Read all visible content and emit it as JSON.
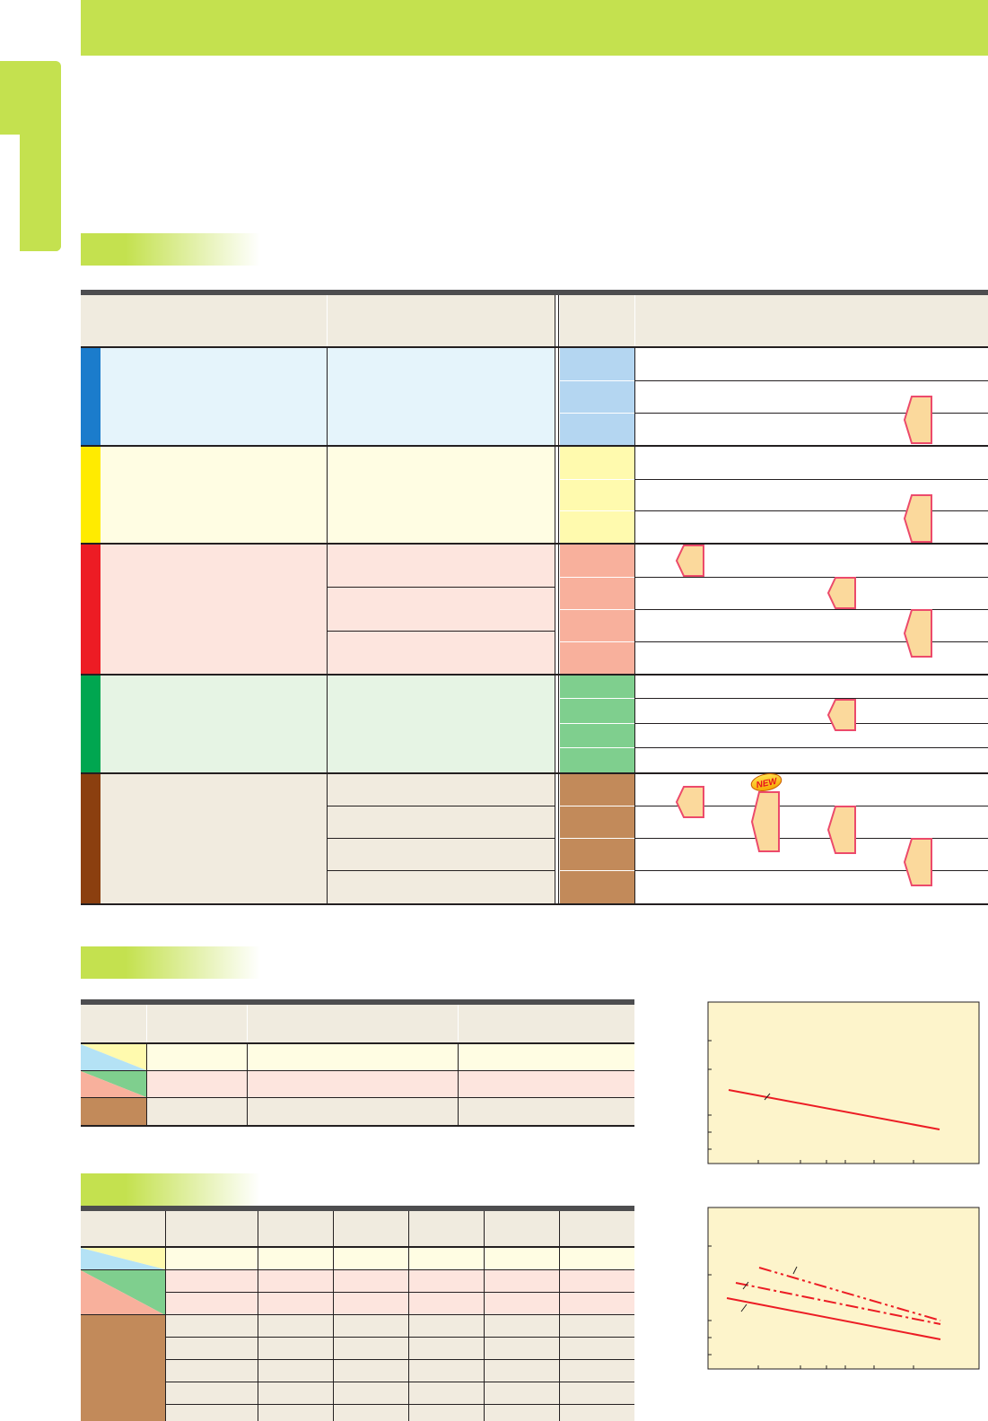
{
  "colors": {
    "accent_green": "#c4e14f",
    "blue": "#1b7ccc",
    "blue_light": "#e5f4fb",
    "blue_mid": "#b4d6f1",
    "yellow": "#ffeb00",
    "yellow_light": "#fffde3",
    "yellow_mid": "#fffaae",
    "red": "#ed1c24",
    "red_light": "#fde5de",
    "red_mid": "#f8b09c",
    "green": "#00a650",
    "green_light": "#e6f4e4",
    "green_mid": "#7fcf8e",
    "brown": "#8b3f0f",
    "brown_light": "#f1ebdf",
    "brown_mid": "#c28a5a",
    "header_bg": "#f0ebdf",
    "chart_bg": "#fdf4cb",
    "line_red": "#ec1c24",
    "tag_fill": "#fbd99c"
  },
  "icons": {
    "new_badge": "new-badge-icon",
    "tag": "pentagon-arrow-tag-icon"
  },
  "new_badge_text": "NEW"
}
